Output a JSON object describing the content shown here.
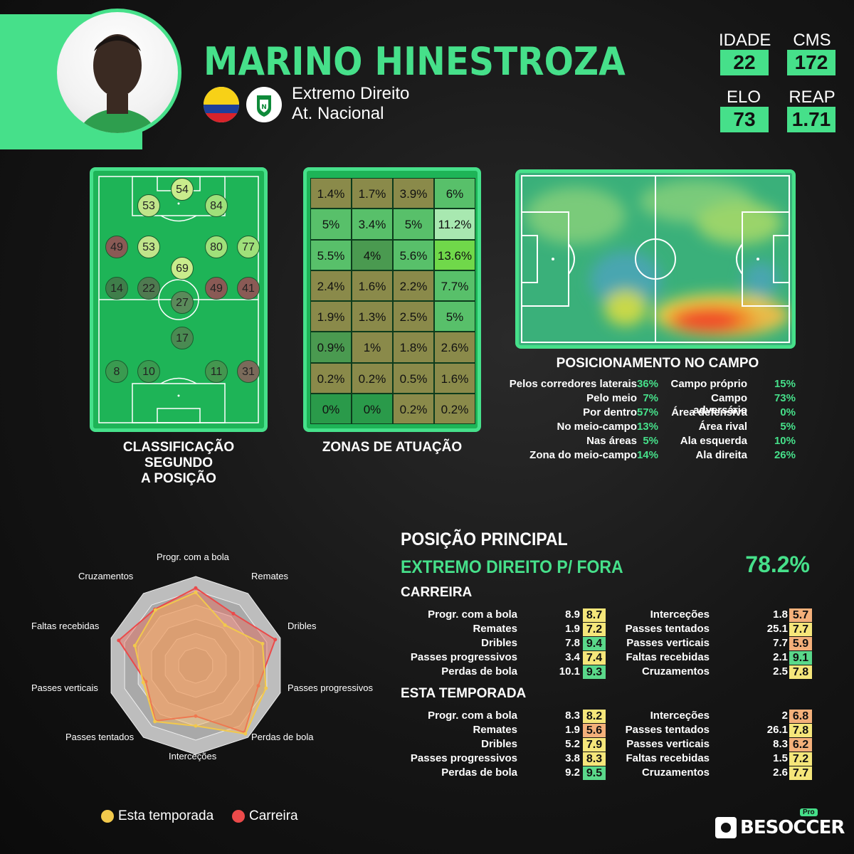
{
  "player": {
    "name": "MARINO HINESTROZA",
    "position": "Extremo Direito",
    "club": "At. Nacional"
  },
  "stats": {
    "idade_label": "IDADE",
    "idade": "22",
    "cms_label": "CMS",
    "cms": "172",
    "elo_label": "ELO",
    "elo": "73",
    "reap_label": "REAP",
    "reap": "1.71"
  },
  "sections": {
    "classificacao": "CLASSIFICAÇÃO SEGUNDO",
    "classificacao2": "A POSIÇÃO",
    "zonas": "ZONAS DE ATUAÇÃO",
    "posicionamento": "POSICIONAMENTO NO CAMPO"
  },
  "position_ratings": [
    {
      "v": "54",
      "c": "#c9ec8c"
    },
    {
      "v": "53",
      "c": "#c0e48a"
    },
    {
      "v": "84",
      "c": "#9fe07a"
    },
    {
      "v": "49",
      "c": "#8a5a55"
    },
    {
      "v": "53",
      "c": "#c0e48a"
    },
    {
      "v": "80",
      "c": "#9fe07a"
    },
    {
      "v": "77",
      "c": "#9fe07a"
    },
    {
      "v": "69",
      "c": "#c9ec8c"
    },
    {
      "v": "14",
      "c": "#3f7e4a"
    },
    {
      "v": "22",
      "c": "#4f7a50"
    },
    {
      "v": "49",
      "c": "#8a5a55"
    },
    {
      "v": "41",
      "c": "#8a5a55"
    },
    {
      "v": "27",
      "c": "#5a8a5a"
    },
    {
      "v": "17",
      "c": "#4a8a52"
    },
    {
      "v": "8",
      "c": "#3a9a50"
    },
    {
      "v": "10",
      "c": "#3a9a50"
    },
    {
      "v": "11",
      "c": "#44964f"
    },
    {
      "v": "31",
      "c": "#7a6a5a"
    }
  ],
  "zones": [
    [
      "1.4%",
      "1.7%",
      "3.9%",
      "6%"
    ],
    [
      "5%",
      "3.4%",
      "5%",
      "11.2%"
    ],
    [
      "5.5%",
      "4%",
      "5.6%",
      "13.6%"
    ],
    [
      "2.4%",
      "1.6%",
      "2.2%",
      "7.7%"
    ],
    [
      "1.9%",
      "1.3%",
      "2.5%",
      "5%"
    ],
    [
      "0.9%",
      "1%",
      "1.8%",
      "2.6%"
    ],
    [
      "0.2%",
      "0.2%",
      "0.5%",
      "1.6%"
    ],
    [
      "0%",
      "0%",
      "0.2%",
      "0.2%"
    ]
  ],
  "zone_colors": [
    [
      "#8a8a4a",
      "#8a8a4a",
      "#8a8a4a",
      "#58c06a"
    ],
    [
      "#58c06a",
      "#58c06a",
      "#58c06a",
      "#a8e8b0"
    ],
    [
      "#58c06a",
      "#4a9a50",
      "#58c06a",
      "#70d84a"
    ],
    [
      "#8a8a4a",
      "#8a8a4a",
      "#8a8a4a",
      "#58c06a"
    ],
    [
      "#8a8a4a",
      "#8a8a4a",
      "#8a8a4a",
      "#58c06a"
    ],
    [
      "#4a9a50",
      "#8a8a4a",
      "#8a8a4a",
      "#8a8a4a"
    ],
    [
      "#8a8a4a",
      "#8a8a4a",
      "#8a8a4a",
      "#8a8a4a"
    ],
    [
      "#2a9a4a",
      "#2a9a4a",
      "#8a8a4a",
      "#8a8a4a"
    ]
  ],
  "positioning_left": [
    {
      "label": "Pelos corredores laterais",
      "pct": "36%"
    },
    {
      "label": "Pelo meio",
      "pct": "7%"
    },
    {
      "label": "Por dentro",
      "pct": "57%"
    },
    {
      "label": "No meio-campo",
      "pct": "13%"
    },
    {
      "label": "Nas áreas",
      "pct": "5%"
    },
    {
      "label": "Zona do meio-campo",
      "pct": "14%"
    }
  ],
  "positioning_right": [
    {
      "label": "Campo próprio",
      "pct": "15%"
    },
    {
      "label": "Campo adversário",
      "pct": "73%"
    },
    {
      "label": "Área defensiva",
      "pct": "0%"
    },
    {
      "label": "Área rival",
      "pct": "5%"
    },
    {
      "label": "Ala esquerda",
      "pct": "10%"
    },
    {
      "label": "Ala direita",
      "pct": "26%"
    }
  ],
  "main_position": {
    "title": "POSIÇÃO PRINCIPAL",
    "role": "EXTREMO DIREITO P/ FORA",
    "pct": "78.2%"
  },
  "career": {
    "title": "CARREIRA",
    "left": [
      {
        "label": "Progr. com a bola",
        "v": "8.9",
        "r": "8.7",
        "c": "#f5e67a"
      },
      {
        "label": "Remates",
        "v": "1.9",
        "r": "7.2",
        "c": "#f5e67a"
      },
      {
        "label": "Dribles",
        "v": "7.8",
        "r": "9.4",
        "c": "#5ad88a"
      },
      {
        "label": "Passes progressivos",
        "v": "3.4",
        "r": "7.4",
        "c": "#f5e67a"
      },
      {
        "label": "Perdas de bola",
        "v": "10.1",
        "r": "9.3",
        "c": "#5ad88a"
      }
    ],
    "right": [
      {
        "label": "Interceções",
        "v": "1.8",
        "r": "5.7",
        "c": "#f4b07a"
      },
      {
        "label": "Passes tentados",
        "v": "25.1",
        "r": "7.7",
        "c": "#f5e67a"
      },
      {
        "label": "Passes verticais",
        "v": "7.7",
        "r": "5.9",
        "c": "#f4b07a"
      },
      {
        "label": "Faltas recebidas",
        "v": "2.1",
        "r": "9.1",
        "c": "#5ad88a"
      },
      {
        "label": "Cruzamentos",
        "v": "2.5",
        "r": "7.8",
        "c": "#f5e67a"
      }
    ]
  },
  "season": {
    "title": "ESTA TEMPORADA",
    "left": [
      {
        "label": "Progr. com a bola",
        "v": "8.3",
        "r": "8.2",
        "c": "#f5e67a"
      },
      {
        "label": "Remates",
        "v": "1.9",
        "r": "5.6",
        "c": "#f4b07a"
      },
      {
        "label": "Dribles",
        "v": "5.2",
        "r": "7.9",
        "c": "#f5e67a"
      },
      {
        "label": "Passes progressivos",
        "v": "3.8",
        "r": "8.3",
        "c": "#f5e67a"
      },
      {
        "label": "Perdas de bola",
        "v": "9.2",
        "r": "9.5",
        "c": "#5ad88a"
      }
    ],
    "right": [
      {
        "label": "Interceções",
        "v": "2",
        "r": "6.8",
        "c": "#f4b07a"
      },
      {
        "label": "Passes tentados",
        "v": "26.1",
        "r": "7.8",
        "c": "#f5e67a"
      },
      {
        "label": "Passes verticais",
        "v": "8.3",
        "r": "6.2",
        "c": "#f4b07a"
      },
      {
        "label": "Faltas recebidas",
        "v": "1.5",
        "r": "7.2",
        "c": "#f5e67a"
      },
      {
        "label": "Cruzamentos",
        "v": "2.6",
        "r": "7.7",
        "c": "#f5e67a"
      }
    ]
  },
  "radar": {
    "labels": [
      "Progr. com a bola",
      "Remates",
      "Dribles",
      "Passes progressivos",
      "Perdas de bola",
      "Interceções",
      "Passes tentados",
      "Passes verticais",
      "Faltas recebidas",
      "Cruzamentos"
    ],
    "season": [
      8.2,
      5.6,
      7.9,
      8.3,
      9.5,
      6.8,
      7.8,
      6.2,
      7.2,
      7.7
    ],
    "career": [
      8.7,
      7.2,
      9.4,
      7.4,
      9.3,
      5.7,
      7.7,
      5.9,
      9.1,
      7.8
    ]
  },
  "legend": {
    "season": "Esta temporada",
    "career": "Carreira"
  },
  "colors": {
    "accent": "#46e08a",
    "season": "#f2c94c",
    "career": "#eb4a4a"
  },
  "brand": {
    "pro": "Pro",
    "name": "BESOCCER"
  }
}
